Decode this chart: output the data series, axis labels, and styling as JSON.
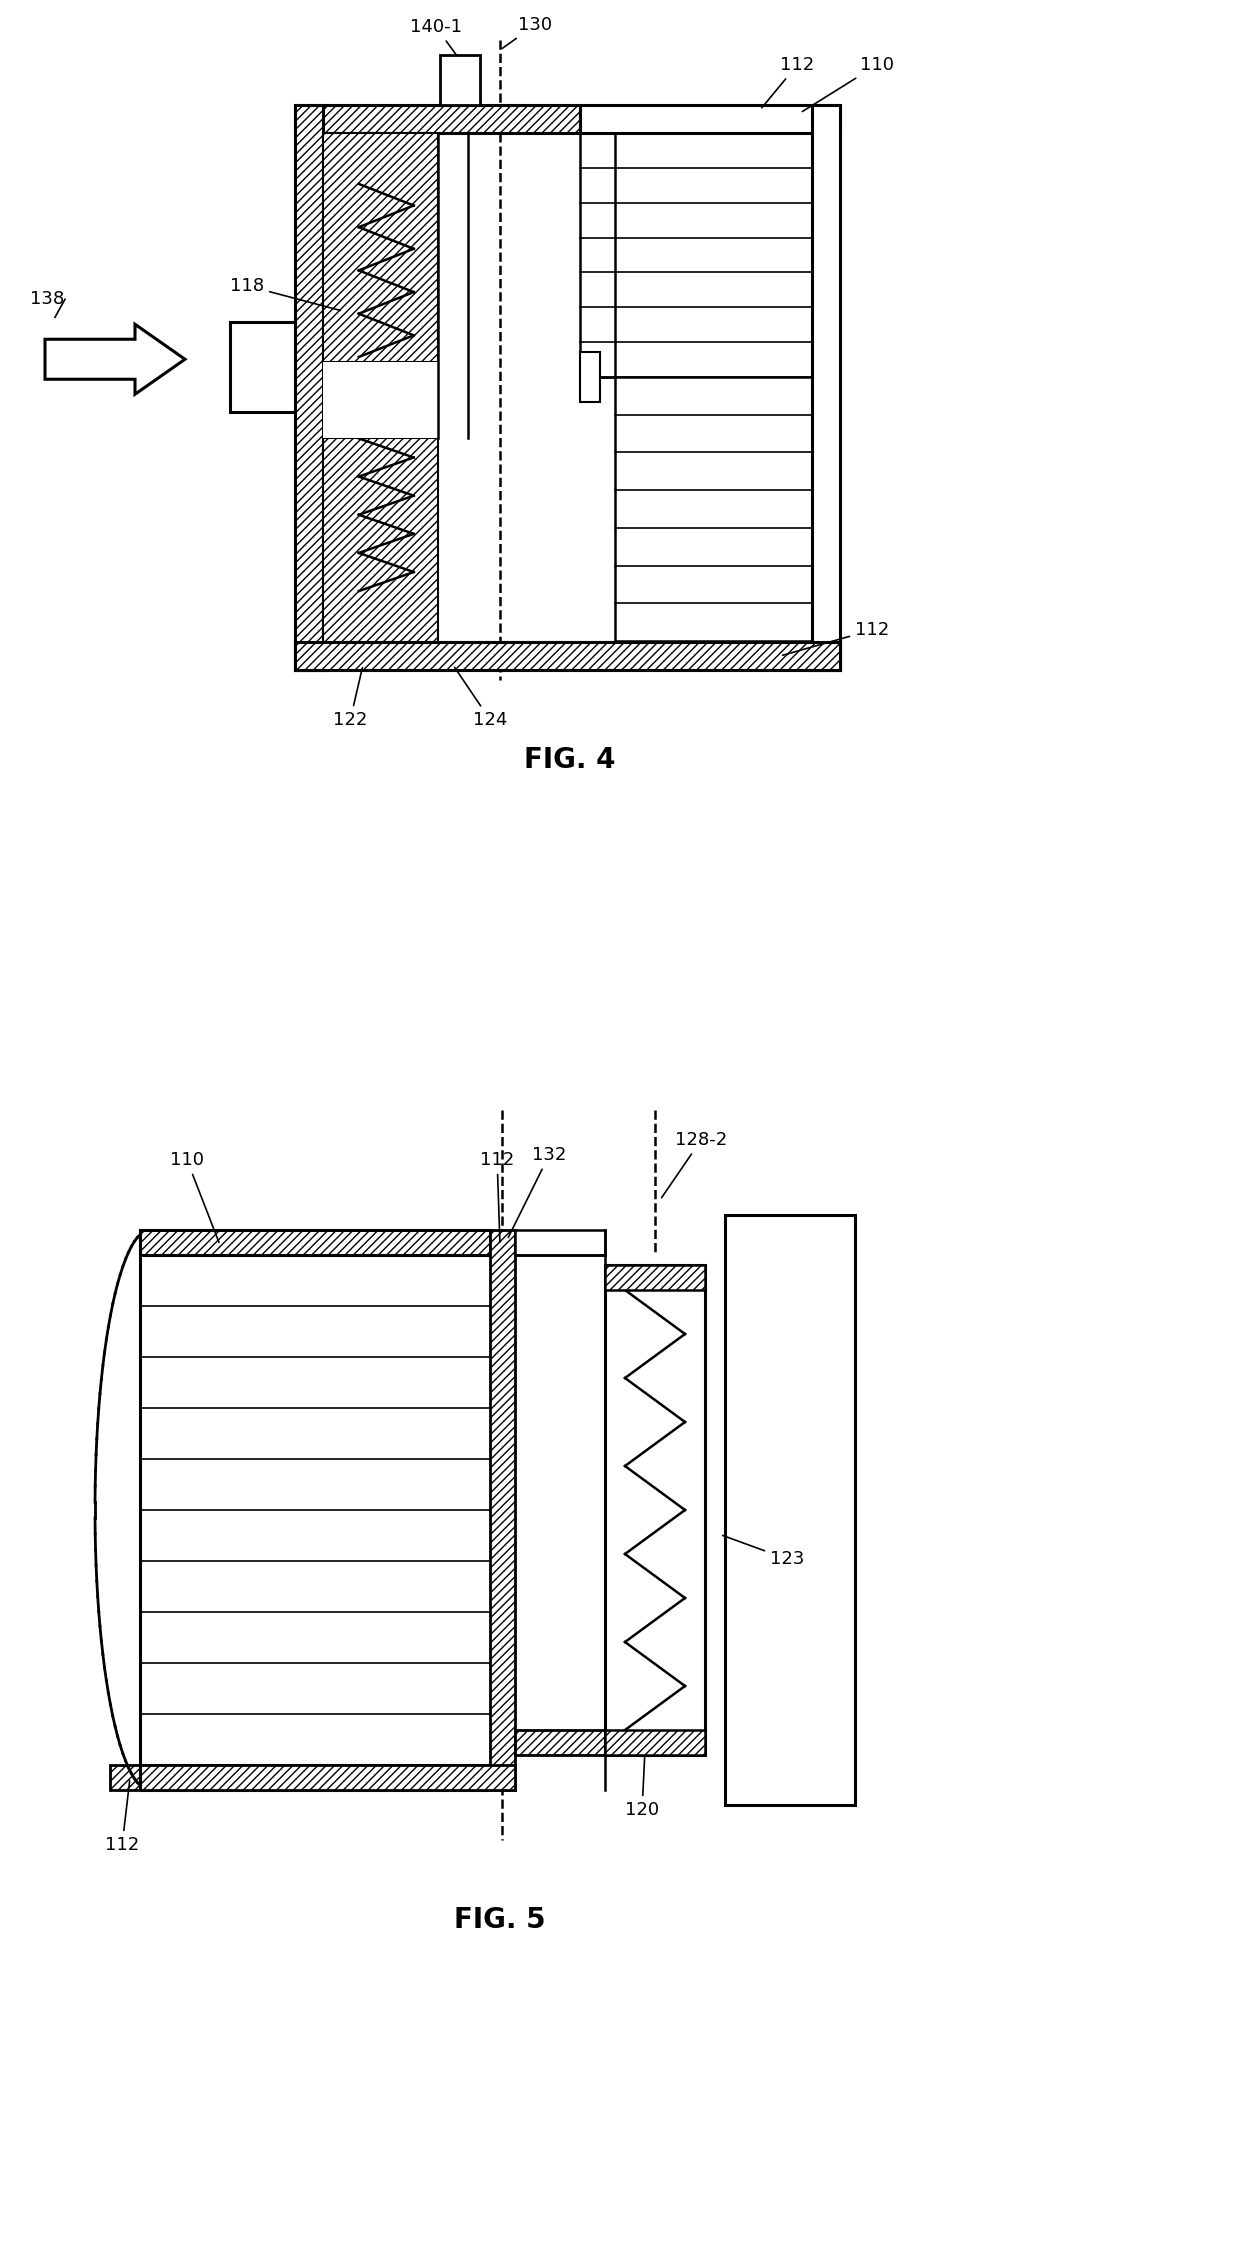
{
  "fig_width": 12.4,
  "fig_height": 22.5,
  "bg_color": "#ffffff",
  "fig4_title": "FIG. 4",
  "fig5_title": "FIG. 5"
}
